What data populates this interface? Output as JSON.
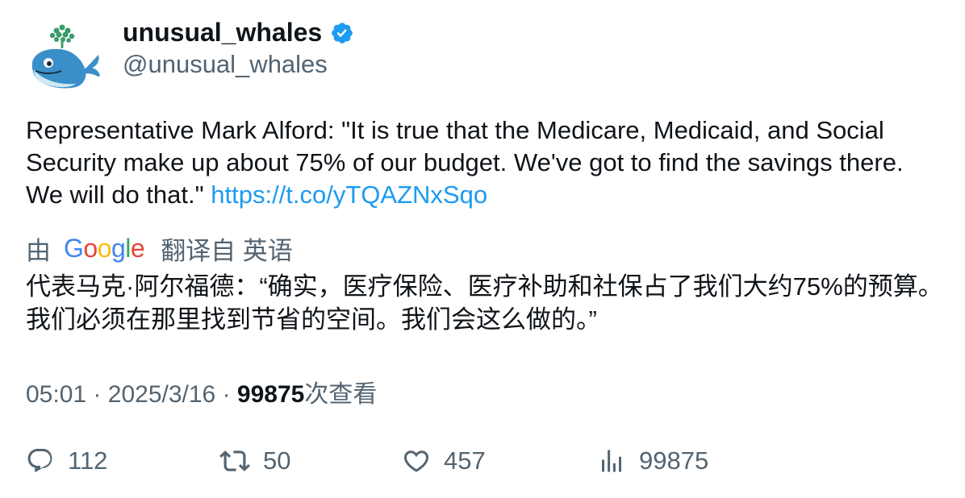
{
  "author": {
    "display_name": "unusual_whales",
    "handle": "@unusual_whales",
    "verified": true,
    "avatar_icon": "whale-logo-icon",
    "verified_icon": "verified-badge-icon"
  },
  "tweet": {
    "text": "Representative Mark Alford: \"It is true that the Medicare, Medicaid, and Social Security make up about 75% of our budget. We've got to find the savings there. We will do that.\" ",
    "link": "https://t.co/yTQAZNxSqo"
  },
  "translation": {
    "prefix": "由",
    "provider": "Google",
    "suffix": "翻译自 英语",
    "text": "代表马克·阿尔福德：“确实，医疗保险、医疗补助和社保占了我们大约75%的预算。我们必须在那里找到节省的空间。我们会这么做的。”"
  },
  "meta": {
    "time": "05:01",
    "date": "2025/3/16",
    "separator": "·",
    "views_count": "99875",
    "views_label": "次查看"
  },
  "actions": {
    "replies": "112",
    "retweets": "50",
    "likes": "457",
    "views": "99875"
  },
  "colors": {
    "link": "#1d9bf0",
    "secondary_text": "#536471",
    "primary_text": "#0f1419",
    "verified_badge": "#1d9bf0"
  }
}
